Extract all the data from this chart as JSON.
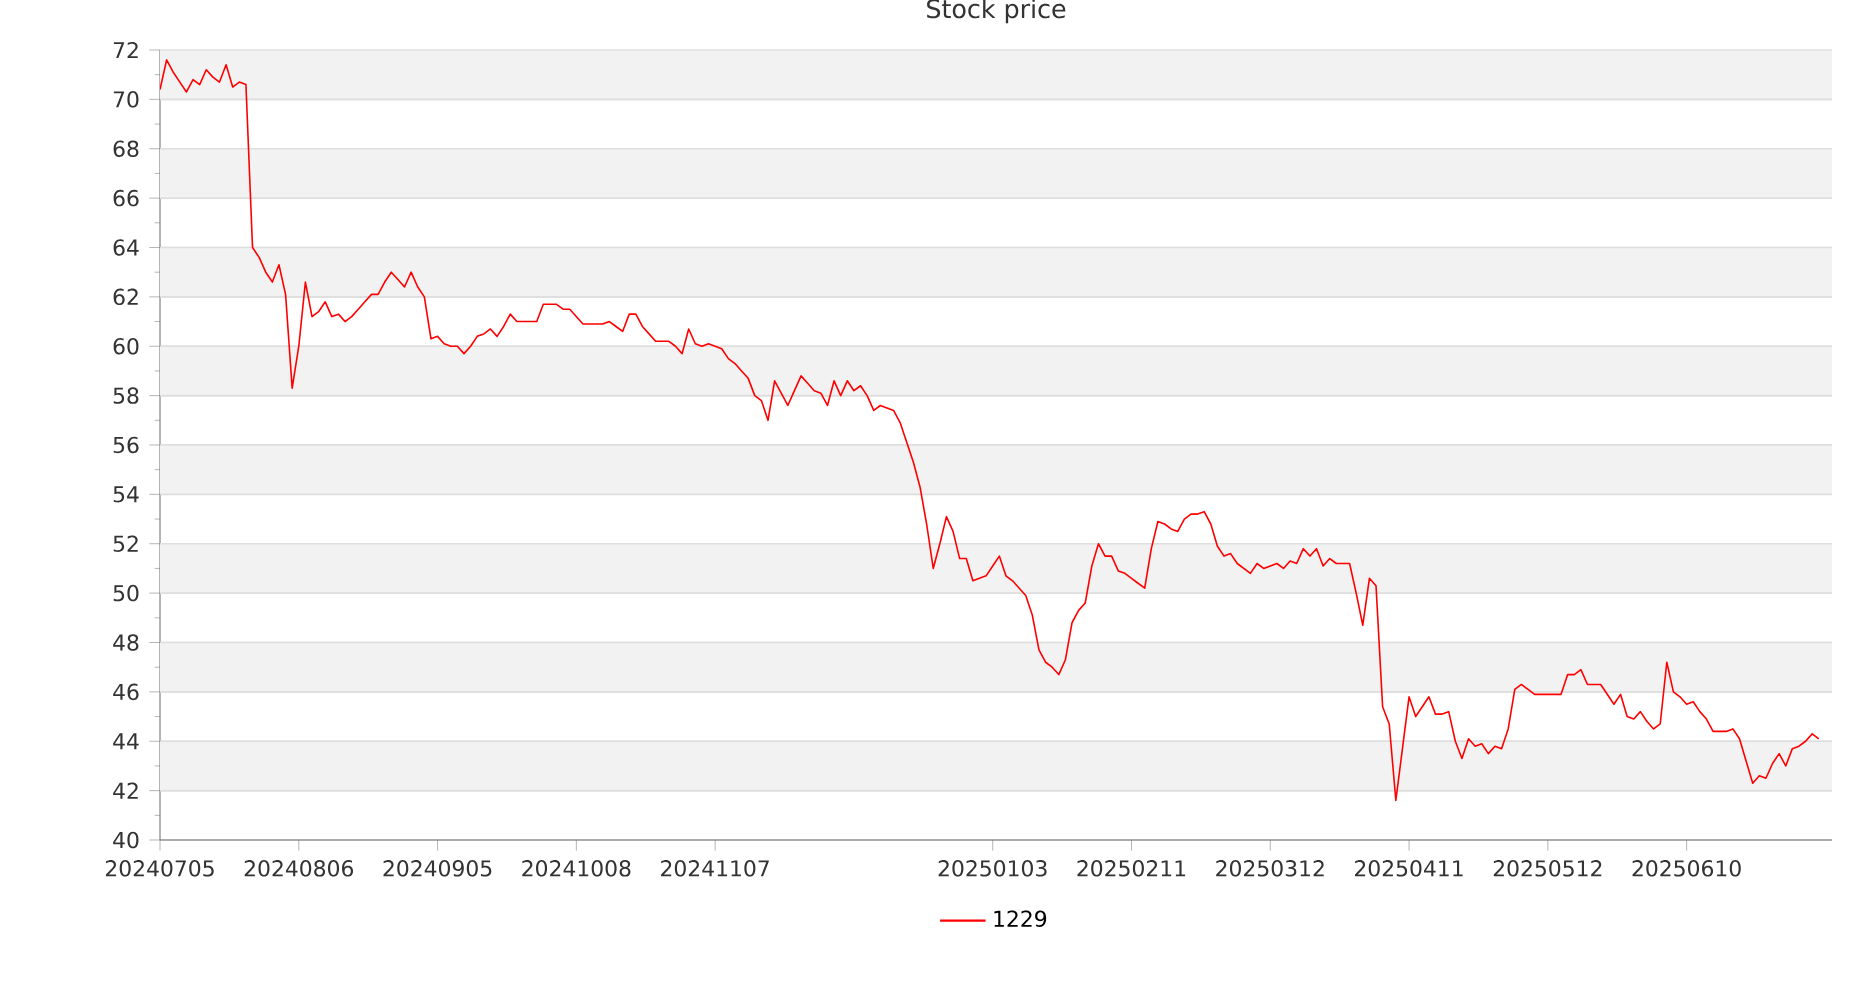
{
  "chart_data": {
    "type": "line",
    "title": "Stock price",
    "categories": [
      "20240705",
      null,
      null,
      null,
      null,
      null,
      null,
      null,
      null,
      null,
      null,
      null,
      null,
      null,
      null,
      null,
      null,
      null,
      null,
      null,
      null,
      "20240806",
      null,
      null,
      null,
      null,
      null,
      null,
      null,
      null,
      null,
      null,
      null,
      null,
      null,
      null,
      null,
      null,
      null,
      null,
      null,
      null,
      "20240905",
      null,
      null,
      null,
      null,
      null,
      null,
      null,
      null,
      null,
      null,
      null,
      null,
      null,
      null,
      null,
      null,
      null,
      null,
      null,
      null,
      "20241008",
      null,
      null,
      null,
      null,
      null,
      null,
      null,
      null,
      null,
      null,
      null,
      null,
      null,
      null,
      null,
      null,
      null,
      null,
      null,
      null,
      "20241107",
      null,
      null,
      null,
      null,
      null,
      null,
      null,
      null,
      null,
      null,
      null,
      null,
      null,
      null,
      null,
      null,
      null,
      null,
      null,
      null,
      null,
      null,
      null,
      null,
      null,
      null,
      null,
      null,
      null,
      null,
      null,
      null,
      null,
      null,
      null,
      null,
      null,
      null,
      null,
      null,
      null,
      "20250103",
      null,
      null,
      null,
      null,
      null,
      null,
      null,
      null,
      null,
      null,
      null,
      null,
      null,
      null,
      null,
      null,
      null,
      null,
      null,
      null,
      "20250211",
      null,
      null,
      null,
      null,
      null,
      null,
      null,
      null,
      null,
      null,
      null,
      null,
      null,
      null,
      null,
      null,
      null,
      null,
      null,
      null,
      "20250312",
      null,
      null,
      null,
      null,
      null,
      null,
      null,
      null,
      null,
      null,
      null,
      null,
      null,
      null,
      null,
      null,
      null,
      null,
      null,
      null,
      "20250411",
      null,
      null,
      null,
      null,
      null,
      null,
      null,
      null,
      null,
      null,
      null,
      null,
      null,
      null,
      null,
      null,
      null,
      null,
      null,
      null,
      "20250512",
      null,
      null,
      null,
      null,
      null,
      null,
      null,
      null,
      null,
      null,
      null,
      null,
      null,
      null,
      null,
      null,
      null,
      null,
      null,
      null,
      "20250610",
      null,
      null,
      null,
      null,
      null,
      null,
      null,
      null,
      null,
      null,
      null,
      null,
      null,
      null,
      null,
      null,
      null,
      null,
      null,
      null
    ],
    "ylim": [
      40,
      72
    ],
    "yticks": [
      40,
      42,
      44,
      46,
      48,
      50,
      52,
      54,
      56,
      58,
      60,
      62,
      64,
      66,
      68,
      70,
      72
    ],
    "grid": "y",
    "legend": "bottom",
    "line_style": "solid",
    "series": [
      {
        "name": "1229",
        "color": "#ff0000",
        "values": [
          70.4,
          71.6,
          71.1,
          70.7,
          70.3,
          70.8,
          70.6,
          71.2,
          70.9,
          70.7,
          71.4,
          70.5,
          70.7,
          70.6,
          64.0,
          63.6,
          63.0,
          62.6,
          63.3,
          62.1,
          58.3,
          60.0,
          62.6,
          61.2,
          61.4,
          61.8,
          61.2,
          61.3,
          61.0,
          61.2,
          61.5,
          61.8,
          62.1,
          62.1,
          62.6,
          63.0,
          62.7,
          62.4,
          63.0,
          62.4,
          62.0,
          60.3,
          60.4,
          60.1,
          60.0,
          60.0,
          59.7,
          60.0,
          60.4,
          60.5,
          60.7,
          60.4,
          60.8,
          61.3,
          61.0,
          61.0,
          61.0,
          61.0,
          61.7,
          61.7,
          61.7,
          61.5,
          61.5,
          61.2,
          60.9,
          60.9,
          60.9,
          60.9,
          61.0,
          60.8,
          60.6,
          61.3,
          61.3,
          60.8,
          60.5,
          60.2,
          60.2,
          60.2,
          60.0,
          59.7,
          60.7,
          60.1,
          60.0,
          60.1,
          60.0,
          59.9,
          59.5,
          59.3,
          59.0,
          58.7,
          58.0,
          57.8,
          57.0,
          58.6,
          58.1,
          57.6,
          58.2,
          58.8,
          58.5,
          58.2,
          58.1,
          57.6,
          58.6,
          58.0,
          58.6,
          58.2,
          58.4,
          58.0,
          57.4,
          57.6,
          57.5,
          57.4,
          56.9,
          56.1,
          55.3,
          54.3,
          52.8,
          51.0,
          52.0,
          53.1,
          52.5,
          51.4,
          51.4,
          50.5,
          50.6,
          50.7,
          51.1,
          51.5,
          50.7,
          50.5,
          50.2,
          49.9,
          49.1,
          47.7,
          47.2,
          47.0,
          46.7,
          47.3,
          48.8,
          49.3,
          49.6,
          51.1,
          52.0,
          51.5,
          51.5,
          50.9,
          50.8,
          50.6,
          50.4,
          50.2,
          51.8,
          52.9,
          52.8,
          52.6,
          52.5,
          53.0,
          53.2,
          53.2,
          53.3,
          52.8,
          51.9,
          51.5,
          51.6,
          51.2,
          51.0,
          50.8,
          51.2,
          51.0,
          51.1,
          51.2,
          51.0,
          51.3,
          51.2,
          51.8,
          51.5,
          51.8,
          51.1,
          51.4,
          51.2,
          51.2,
          51.2,
          50.0,
          48.7,
          50.6,
          50.3,
          45.4,
          44.7,
          41.6,
          43.7,
          45.8,
          45.0,
          45.4,
          45.8,
          45.1,
          45.1,
          45.2,
          44.0,
          43.3,
          44.1,
          43.8,
          43.9,
          43.5,
          43.8,
          43.7,
          44.5,
          46.1,
          46.3,
          46.1,
          45.9,
          45.9,
          45.9,
          45.9,
          45.9,
          46.7,
          46.7,
          46.9,
          46.3,
          46.3,
          46.3,
          45.9,
          45.5,
          45.9,
          45.0,
          44.9,
          45.2,
          44.8,
          44.5,
          44.7,
          47.2,
          46.0,
          45.8,
          45.5,
          45.6,
          45.2,
          44.9,
          44.4,
          44.4,
          44.4,
          44.5,
          44.1,
          43.2,
          42.3,
          42.6,
          42.5,
          43.1,
          43.5,
          43.0,
          43.7,
          43.8,
          44.0,
          44.3,
          44.1
        ]
      }
    ]
  }
}
